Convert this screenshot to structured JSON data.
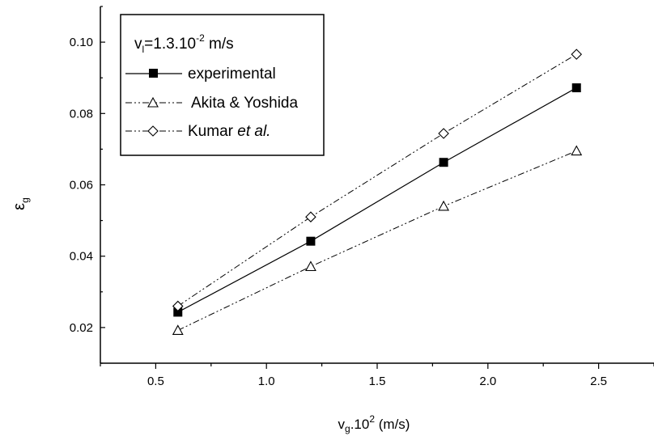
{
  "chart_data": {
    "type": "line",
    "xlim": [
      0.25,
      2.75
    ],
    "ylim": [
      0.01,
      0.11
    ],
    "x_ticks": [
      "0.5",
      "1.0",
      "1.5",
      "2.0",
      "2.5"
    ],
    "y_ticks": [
      "0.02",
      "0.04",
      "0.06",
      "0.08",
      "0.10"
    ],
    "xlabel": {
      "main": "v",
      "sub": "g",
      "rest": ".10",
      "sup": "2",
      "unit": " (m/s)"
    },
    "ylabel": {
      "main": "ε",
      "sub": "g"
    },
    "legend_title": {
      "main": "v",
      "sub": "l",
      "rest": "=1.3.10",
      "sup": "-2",
      "unit": " m/s"
    },
    "legend_position": "top-left",
    "grid": false,
    "series": [
      {
        "name": "experimental",
        "marker": "filled-square",
        "line": "solid",
        "x": [
          0.6,
          1.2,
          1.8,
          2.4
        ],
        "y": [
          0.0243,
          0.0442,
          0.0663,
          0.0872
        ]
      },
      {
        "name": "Akita & Yoshida",
        "marker": "open-triangle",
        "line": "dash-dot-dot",
        "x": [
          0.6,
          1.2,
          1.8,
          2.4
        ],
        "y": [
          0.0192,
          0.0371,
          0.054,
          0.0695
        ]
      },
      {
        "name": "Kumar",
        "name_italic": "et al.",
        "marker": "open-diamond",
        "line": "dash-dot-dot",
        "x": [
          0.6,
          1.2,
          1.8,
          2.4
        ],
        "y": [
          0.026,
          0.051,
          0.0744,
          0.0966
        ]
      }
    ]
  }
}
